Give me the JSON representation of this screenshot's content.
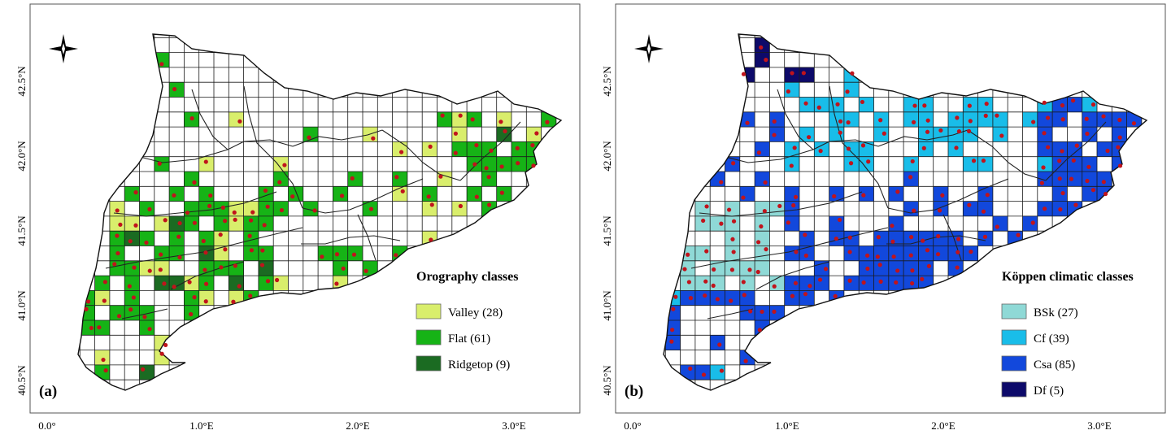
{
  "figure": {
    "latitude_labels": [
      "42.5°N",
      "42.0°N",
      "41.5°N",
      "41.0°N",
      "40.5°N"
    ],
    "longitude_labels": [
      "0.0°",
      "1.0°E",
      "2.0°E",
      "3.0°E"
    ]
  },
  "panels": [
    {
      "id": "a",
      "panel_label": "(a)",
      "legend_title": "Orography classes",
      "legend": [
        {
          "label": "Valley (28)",
          "color": "#d9ee6c"
        },
        {
          "label": "Flat (61)",
          "color": "#16b316"
        },
        {
          "label": "Ridgetop (9)",
          "color": "#1b6b22"
        }
      ]
    },
    {
      "id": "b",
      "panel_label": "(b)",
      "legend_title": "Köppen climatic classes",
      "legend": [
        {
          "label": "BSk (27)",
          "color": "#8fd9d6"
        },
        {
          "label": "Cf (39)",
          "color": "#19bde9"
        },
        {
          "label": "Csa (85)",
          "color": "#1248dc"
        },
        {
          "label": "Df (5)",
          "color": "#0d0a6a"
        }
      ]
    }
  ],
  "colors": {
    "station_dot": "#c0141c",
    "grid_line": "#1a1a1a",
    "frame": "#555555"
  }
}
